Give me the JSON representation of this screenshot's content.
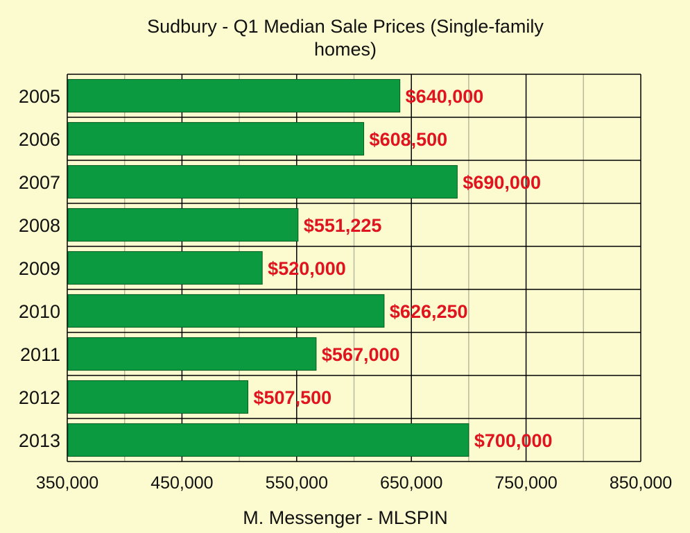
{
  "chart_data": {
    "type": "bar",
    "orientation": "horizontal",
    "title_lines": [
      "Sudbury - Q1 Median Sale Prices (Single-family",
      "homes)"
    ],
    "xlabel": "M. Messenger - MLSPIN",
    "ylabel": "",
    "categories": [
      "2005",
      "2006",
      "2007",
      "2008",
      "2009",
      "2010",
      "2011",
      "2012",
      "2013"
    ],
    "values": [
      640000,
      608500,
      690000,
      551225,
      520000,
      626250,
      567000,
      507500,
      700000
    ],
    "data_labels": [
      "$640,000",
      "$608,500",
      "$690,000",
      "$551,225",
      "$520,000",
      "$626,250",
      "$567,000",
      "$507,500",
      "$700,000"
    ],
    "xlim": [
      350000,
      850000
    ],
    "x_ticks": [
      350000,
      450000,
      550000,
      650000,
      750000,
      850000
    ],
    "x_tick_labels": [
      "350,000",
      "450,000",
      "550,000",
      "650,000",
      "750,000",
      "850,000"
    ],
    "minor_gridlines": [
      400000,
      500000,
      600000,
      700000,
      800000
    ],
    "grid": true,
    "legend": "none",
    "colors": {
      "background": "#fbfbcf",
      "bar": "#0b9a3f",
      "bar_border": "#065c24",
      "data_label": "#e0141e",
      "major_grid": "#000000",
      "minor_grid": "#b8b8a0"
    }
  }
}
